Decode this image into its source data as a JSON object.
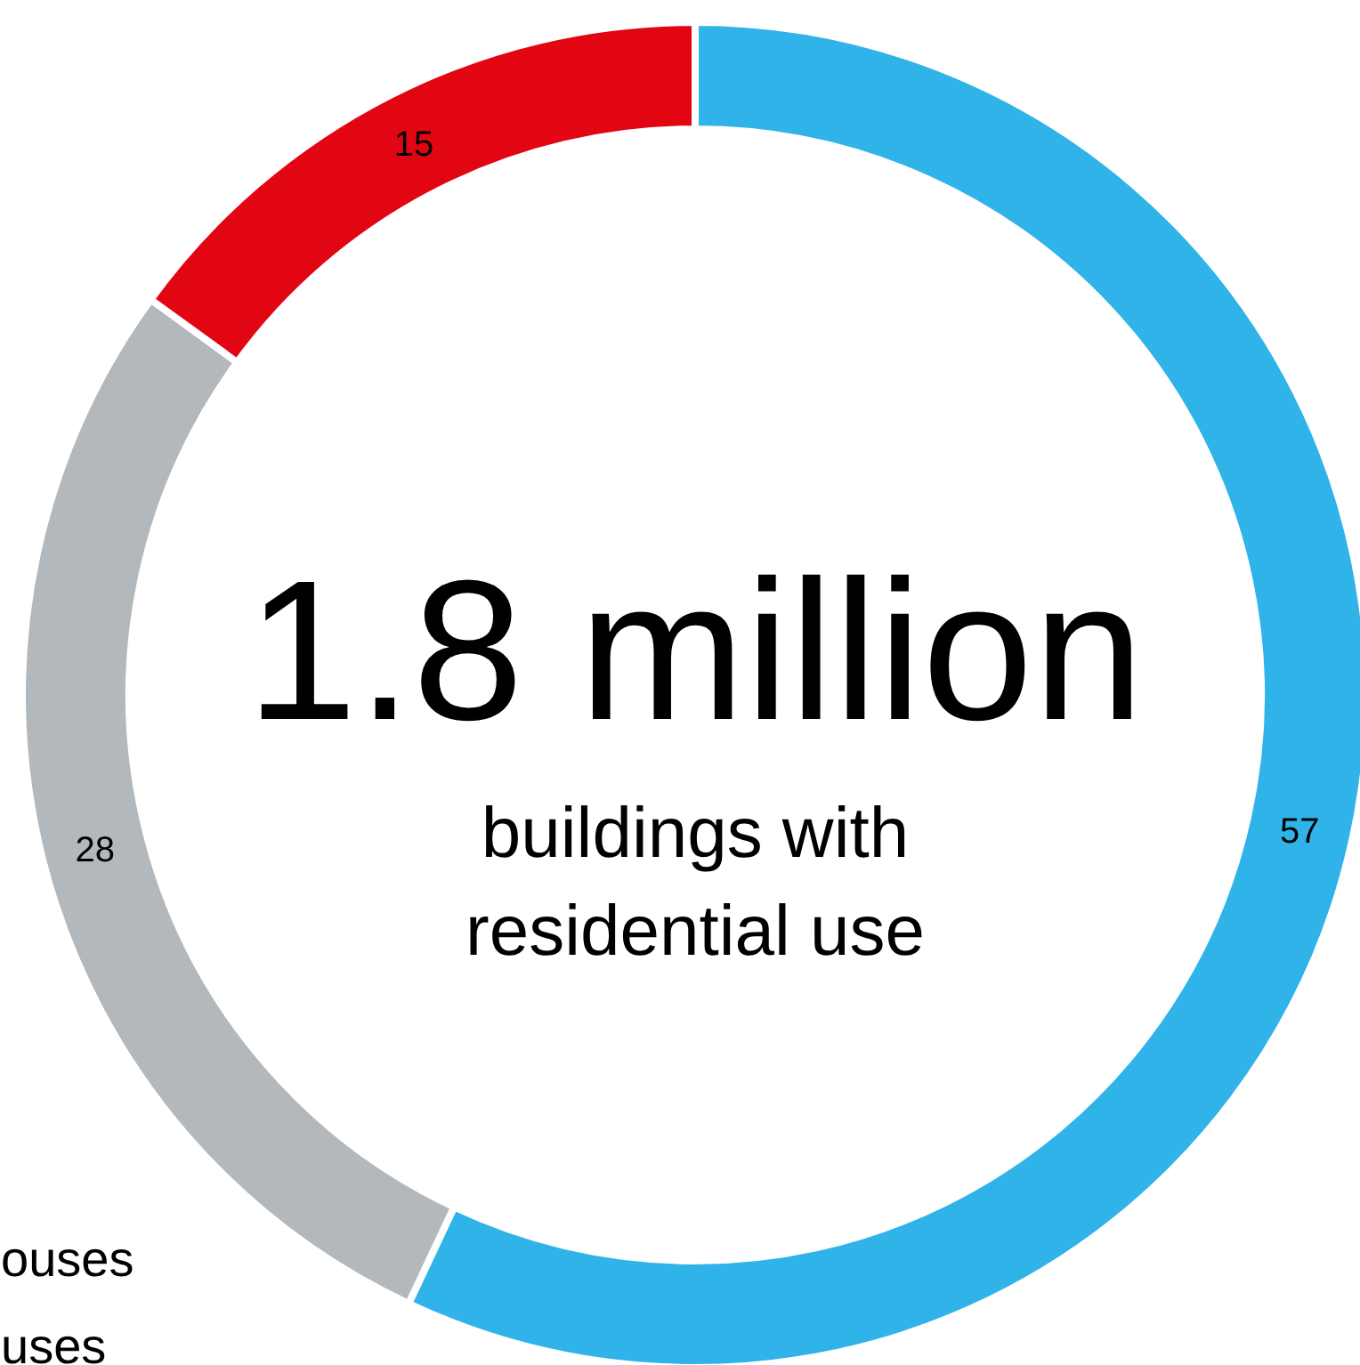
{
  "chart_data": {
    "type": "donut",
    "categories": [
      null,
      null,
      null
    ],
    "values": [
      57,
      28,
      15
    ],
    "colors": [
      "#2fb3e8",
      "#b2b8bb",
      "#e20613"
    ],
    "data_labels": true,
    "annotations": [
      "1.8 million",
      "buildings with",
      "residential use",
      "ouses",
      "uses"
    ]
  }
}
